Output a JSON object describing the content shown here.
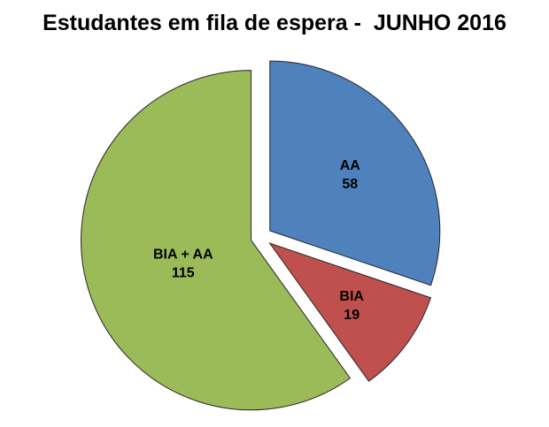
{
  "title": "Estudantes em fila de espera -  JUNHO 2016",
  "chart_data": {
    "type": "pie",
    "title": "Estudantes em fila de espera -  JUNHO 2016",
    "labels": [
      "AA",
      "BIA",
      "BIA + AA"
    ],
    "values": [
      58,
      19,
      115
    ],
    "total": 192,
    "colors": [
      "#4F81BD",
      "#C0504D",
      "#9BBB59"
    ],
    "slice_border_color": "#262626",
    "start_angle_deg": 0,
    "direction": "clockwise",
    "exploded": true,
    "legend": "none",
    "data_labels": "category-and-value-inside"
  }
}
